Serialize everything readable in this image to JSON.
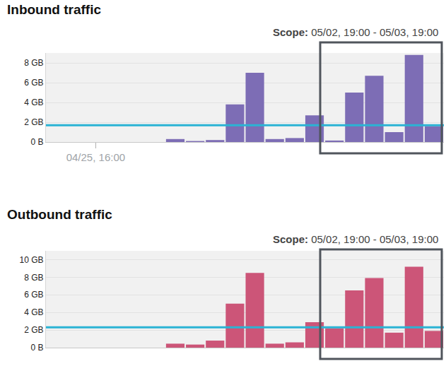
{
  "chart_data": [
    {
      "type": "bar",
      "title": "Inbound traffic",
      "subtitle": "Scope: 05/02, 19:00 - 05/03, 19:00",
      "categories": [
        null,
        null,
        "04/25, 16:00",
        null,
        null,
        null,
        null,
        null,
        null,
        null,
        null,
        null,
        null,
        null,
        null,
        null,
        null,
        null,
        null,
        null
      ],
      "values": [
        null,
        null,
        null,
        null,
        null,
        null,
        0.3,
        0.1,
        0.2,
        3.8,
        7.0,
        0.3,
        0.4,
        2.7,
        0.15,
        5.0,
        6.7,
        1.0,
        8.8,
        1.6
      ],
      "color": "#7d6db5",
      "ylim": [
        0,
        9
      ],
      "yticks": [
        {
          "value": 0,
          "label": "0 B"
        },
        {
          "value": 2,
          "label": "2 GB"
        },
        {
          "value": 4,
          "label": "4 GB"
        },
        {
          "value": 6,
          "label": "6 GB"
        },
        {
          "value": 8,
          "label": "8 GB"
        }
      ],
      "reference_line": {
        "value": 1.7,
        "color": "#2bb3d4"
      },
      "grid": true
    },
    {
      "type": "bar",
      "title": "Outbound traffic",
      "subtitle": "Scope: 05/02, 19:00 - 05/03, 19:00",
      "categories": [
        null,
        null,
        null,
        null,
        null,
        null,
        null,
        null,
        null,
        null,
        null,
        null,
        null,
        null,
        null,
        null,
        null,
        null,
        null,
        null
      ],
      "values": [
        null,
        null,
        null,
        null,
        null,
        null,
        0.45,
        0.35,
        0.8,
        5.0,
        8.5,
        0.45,
        0.6,
        2.9,
        2.2,
        6.5,
        7.9,
        1.7,
        9.2,
        1.9
      ],
      "color": "#cc5578",
      "ylim": [
        0,
        11
      ],
      "yticks": [
        {
          "value": 0,
          "label": "0 B"
        },
        {
          "value": 2,
          "label": "2 GB"
        },
        {
          "value": 4,
          "label": "4 GB"
        },
        {
          "value": 6,
          "label": "6 GB"
        },
        {
          "value": 8,
          "label": "8 GB"
        },
        {
          "value": 10,
          "label": "10 GB"
        }
      ],
      "reference_line": {
        "value": 2.3,
        "color": "#2bb3d4"
      },
      "grid": true
    }
  ]
}
